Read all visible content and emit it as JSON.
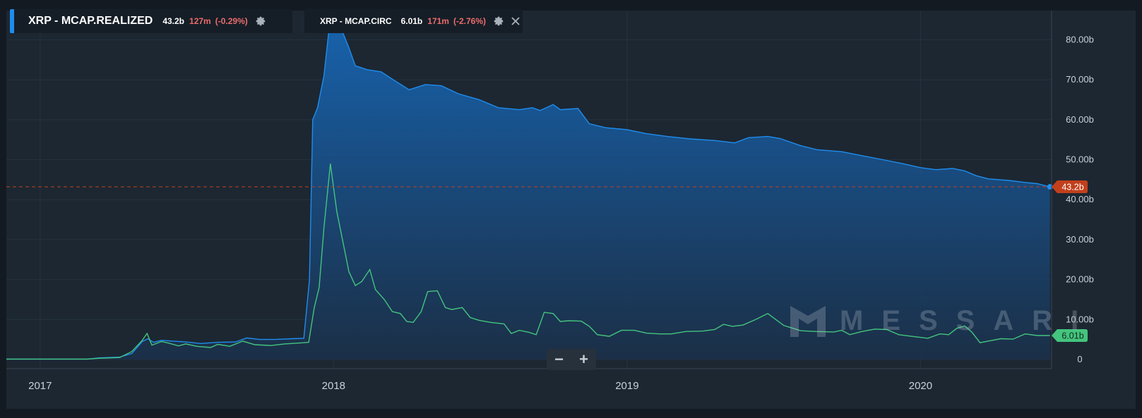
{
  "legend": [
    {
      "name": "XRP - MCAP.REALIZED",
      "value": "43.2b",
      "change": "127m",
      "change_pct": "(-0.29%)",
      "color": "#1f8ded"
    },
    {
      "name": "XRP - MCAP.CIRC",
      "value": "6.01b",
      "change": "171m",
      "change_pct": "(-2.76%)",
      "color": "#44c47e"
    }
  ],
  "zoom": {
    "minus": "−",
    "plus": "+"
  },
  "watermark": "MESSARI",
  "icons": {
    "settings": "gear-icon",
    "close": "close-icon",
    "brand": "messari-logo-icon"
  },
  "chart_data": {
    "type": "area",
    "x_ticks": [
      "2017",
      "2018",
      "2019",
      "2020"
    ],
    "y_ticks": [
      "0",
      "10.00b",
      "20.00b",
      "30.00b",
      "40.00b",
      "50.00b",
      "60.00b",
      "70.00b",
      "80.00b"
    ],
    "ylim": [
      0,
      87
    ],
    "xlim": [
      "2016-11",
      "2020-06"
    ],
    "price_line": {
      "value": 43.2,
      "label": "43.2b",
      "color": "#c2401b"
    },
    "series": [
      {
        "name": "XRP - MCAP.REALIZED",
        "color": "#1f8ded",
        "last_label": "43.2b",
        "points": [
          [
            "2016-11-01",
            0.1
          ],
          [
            "2017-03-01",
            0.1
          ],
          [
            "2017-03-15",
            0.4
          ],
          [
            "2017-04-10",
            0.6
          ],
          [
            "2017-04-25",
            1.5
          ],
          [
            "2017-05-08",
            4.5
          ],
          [
            "2017-05-15",
            5.2
          ],
          [
            "2017-05-22",
            4.3
          ],
          [
            "2017-06-01",
            4.8
          ],
          [
            "2017-06-15",
            4.6
          ],
          [
            "2017-07-01",
            4.4
          ],
          [
            "2017-07-20",
            4.0
          ],
          [
            "2017-08-10",
            4.3
          ],
          [
            "2017-09-01",
            4.4
          ],
          [
            "2017-09-15",
            5.4
          ],
          [
            "2017-10-01",
            5.0
          ],
          [
            "2017-10-20",
            5.0
          ],
          [
            "2017-11-10",
            5.2
          ],
          [
            "2017-11-25",
            5.3
          ],
          [
            "2017-12-02",
            20
          ],
          [
            "2017-12-06",
            60
          ],
          [
            "2017-12-12",
            63
          ],
          [
            "2017-12-20",
            71
          ],
          [
            "2017-12-27",
            84
          ],
          [
            "2018-01-10",
            83
          ],
          [
            "2018-01-20",
            78
          ],
          [
            "2018-01-28",
            73.5
          ],
          [
            "2018-02-12",
            72.5
          ],
          [
            "2018-03-01",
            72
          ],
          [
            "2018-03-20",
            69.5
          ],
          [
            "2018-04-05",
            67.5
          ],
          [
            "2018-04-25",
            68.8
          ],
          [
            "2018-05-15",
            68.5
          ],
          [
            "2018-06-05",
            66.5
          ],
          [
            "2018-07-01",
            65
          ],
          [
            "2018-07-25",
            63
          ],
          [
            "2018-08-20",
            62.5
          ],
          [
            "2018-09-05",
            63
          ],
          [
            "2018-09-15",
            62.3
          ],
          [
            "2018-10-01",
            63.8
          ],
          [
            "2018-10-10",
            62.5
          ],
          [
            "2018-11-01",
            62.8
          ],
          [
            "2018-11-15",
            59
          ],
          [
            "2018-12-05",
            58
          ],
          [
            "2019-01-01",
            57.5
          ],
          [
            "2019-01-25",
            56.5
          ],
          [
            "2019-02-20",
            55.8
          ],
          [
            "2019-03-20",
            55.2
          ],
          [
            "2019-04-20",
            54.8
          ],
          [
            "2019-05-15",
            54.2
          ],
          [
            "2019-06-01",
            55.5
          ],
          [
            "2019-06-25",
            55.8
          ],
          [
            "2019-07-10",
            55.3
          ],
          [
            "2019-08-05",
            53.5
          ],
          [
            "2019-08-25",
            52.5
          ],
          [
            "2019-09-25",
            52
          ],
          [
            "2019-10-20",
            51
          ],
          [
            "2019-11-15",
            50
          ],
          [
            "2019-12-10",
            49
          ],
          [
            "2020-01-01",
            48
          ],
          [
            "2020-01-20",
            47.5
          ],
          [
            "2020-02-10",
            47.8
          ],
          [
            "2020-02-25",
            47.2
          ],
          [
            "2020-03-10",
            46
          ],
          [
            "2020-03-25",
            45.2
          ],
          [
            "2020-04-20",
            44.8
          ],
          [
            "2020-05-10",
            44.3
          ],
          [
            "2020-05-25",
            44
          ],
          [
            "2020-06-10",
            43.2
          ]
        ]
      },
      {
        "name": "XRP - MCAP.CIRC",
        "color": "#44c47e",
        "last_label": "6.01b",
        "points": [
          [
            "2016-11-01",
            0.1
          ],
          [
            "2017-03-01",
            0.1
          ],
          [
            "2017-03-15",
            0.3
          ],
          [
            "2017-04-10",
            0.5
          ],
          [
            "2017-04-25",
            2.0
          ],
          [
            "2017-05-08",
            4.8
          ],
          [
            "2017-05-14",
            6.5
          ],
          [
            "2017-05-20",
            3.6
          ],
          [
            "2017-06-01",
            4.5
          ],
          [
            "2017-06-10",
            4.1
          ],
          [
            "2017-06-22",
            3.4
          ],
          [
            "2017-07-01",
            3.9
          ],
          [
            "2017-07-15",
            3.3
          ],
          [
            "2017-08-01",
            3.0
          ],
          [
            "2017-08-10",
            3.8
          ],
          [
            "2017-08-25",
            3.3
          ],
          [
            "2017-09-10",
            4.6
          ],
          [
            "2017-09-25",
            3.7
          ],
          [
            "2017-10-15",
            3.5
          ],
          [
            "2017-11-01",
            3.9
          ],
          [
            "2017-11-25",
            4.2
          ],
          [
            "2017-12-01",
            4.3
          ],
          [
            "2017-12-08",
            13
          ],
          [
            "2017-12-14",
            18
          ],
          [
            "2017-12-20",
            33
          ],
          [
            "2017-12-28",
            49
          ],
          [
            "2018-01-05",
            37
          ],
          [
            "2018-01-12",
            30
          ],
          [
            "2018-01-20",
            22
          ],
          [
            "2018-01-28",
            18.5
          ],
          [
            "2018-02-05",
            19.5
          ],
          [
            "2018-02-15",
            22.5
          ],
          [
            "2018-02-22",
            17.5
          ],
          [
            "2018-03-05",
            15
          ],
          [
            "2018-03-15",
            12
          ],
          [
            "2018-03-25",
            11.5
          ],
          [
            "2018-04-02",
            9.5
          ],
          [
            "2018-04-10",
            9.3
          ],
          [
            "2018-04-20",
            12
          ],
          [
            "2018-04-28",
            17
          ],
          [
            "2018-05-10",
            17.2
          ],
          [
            "2018-05-20",
            13
          ],
          [
            "2018-05-28",
            12.5
          ],
          [
            "2018-06-10",
            13
          ],
          [
            "2018-06-20",
            10.5
          ],
          [
            "2018-07-01",
            9.8
          ],
          [
            "2018-07-15",
            9.3
          ],
          [
            "2018-08-01",
            8.9
          ],
          [
            "2018-08-10",
            6.5
          ],
          [
            "2018-08-20",
            7.3
          ],
          [
            "2018-09-01",
            6.8
          ],
          [
            "2018-09-10",
            6.2
          ],
          [
            "2018-09-20",
            11.8
          ],
          [
            "2018-10-01",
            11.5
          ],
          [
            "2018-10-10",
            9.5
          ],
          [
            "2018-10-20",
            9.7
          ],
          [
            "2018-11-05",
            9.6
          ],
          [
            "2018-11-15",
            8.3
          ],
          [
            "2018-11-25",
            6.2
          ],
          [
            "2018-12-10",
            5.8
          ],
          [
            "2018-12-25",
            7.3
          ],
          [
            "2019-01-10",
            7.3
          ],
          [
            "2019-01-25",
            6.6
          ],
          [
            "2019-02-10",
            6.4
          ],
          [
            "2019-02-25",
            6.4
          ],
          [
            "2019-03-15",
            7.0
          ],
          [
            "2019-04-05",
            7.1
          ],
          [
            "2019-04-20",
            7.5
          ],
          [
            "2019-05-01",
            8.8
          ],
          [
            "2019-05-12",
            8.3
          ],
          [
            "2019-05-25",
            8.6
          ],
          [
            "2019-06-10",
            10.0
          ],
          [
            "2019-06-25",
            11.5
          ],
          [
            "2019-07-05",
            10.0
          ],
          [
            "2019-07-15",
            8.5
          ],
          [
            "2019-08-05",
            7.2
          ],
          [
            "2019-08-25",
            7.0
          ],
          [
            "2019-09-15",
            6.9
          ],
          [
            "2019-09-25",
            7.3
          ],
          [
            "2019-10-05",
            6.2
          ],
          [
            "2019-10-20",
            7.0
          ],
          [
            "2019-11-05",
            7.6
          ],
          [
            "2019-11-20",
            7.5
          ],
          [
            "2019-12-05",
            6.2
          ],
          [
            "2019-12-25",
            5.7
          ],
          [
            "2020-01-10",
            5.3
          ],
          [
            "2020-01-25",
            6.4
          ],
          [
            "2020-02-05",
            6.2
          ],
          [
            "2020-02-15",
            7.8
          ],
          [
            "2020-02-25",
            8.4
          ],
          [
            "2020-03-05",
            6.8
          ],
          [
            "2020-03-15",
            4.2
          ],
          [
            "2020-03-25",
            4.6
          ],
          [
            "2020-04-10",
            5.2
          ],
          [
            "2020-04-25",
            5.1
          ],
          [
            "2020-05-10",
            6.4
          ],
          [
            "2020-05-25",
            6.0
          ],
          [
            "2020-06-10",
            6.0
          ]
        ]
      }
    ]
  }
}
